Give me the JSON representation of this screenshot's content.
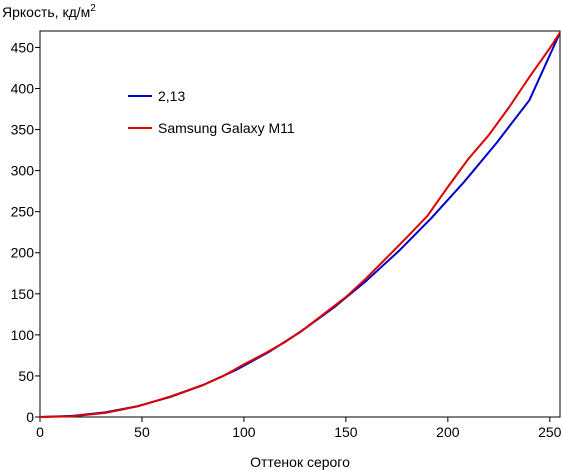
{
  "chart_data": {
    "type": "line",
    "title": "",
    "ylabel": "Яркость, кд/м",
    "ylabel_superscript": "2",
    "xlabel": "Оттенок серого",
    "xlim": [
      0,
      255
    ],
    "ylim": [
      0,
      470
    ],
    "xticks": [
      "0",
      "50",
      "100",
      "150",
      "200",
      "250"
    ],
    "yticks": [
      "0",
      "50",
      "100",
      "150",
      "200",
      "250",
      "300",
      "350",
      "400",
      "450"
    ],
    "grid": false,
    "legend_position": "upper-left",
    "series": [
      {
        "name": "2,13",
        "color": "#0000cc",
        "x": [
          0,
          16,
          32,
          48,
          64,
          80,
          96,
          112,
          128,
          144,
          160,
          176,
          192,
          208,
          224,
          240,
          255
        ],
        "y": [
          0,
          1.3,
          5.6,
          13.3,
          24.5,
          39.0,
          57.1,
          78.8,
          104.1,
          133.1,
          165.8,
          202.2,
          242.4,
          286.4,
          334.1,
          385.7,
          468
        ]
      },
      {
        "name": "Samsung Galaxy M11",
        "color": "#dd0000",
        "x": [
          0,
          16,
          32,
          48,
          64,
          80,
          90,
          100,
          110,
          120,
          130,
          140,
          150,
          160,
          170,
          180,
          190,
          200,
          210,
          220,
          230,
          240,
          250,
          255
        ],
        "y": [
          0,
          1,
          5,
          13,
          25,
          39,
          50,
          64,
          77,
          91,
          108,
          127,
          146,
          169,
          194,
          219,
          245,
          280,
          314,
          343,
          377,
          414,
          449,
          468
        ]
      }
    ]
  }
}
